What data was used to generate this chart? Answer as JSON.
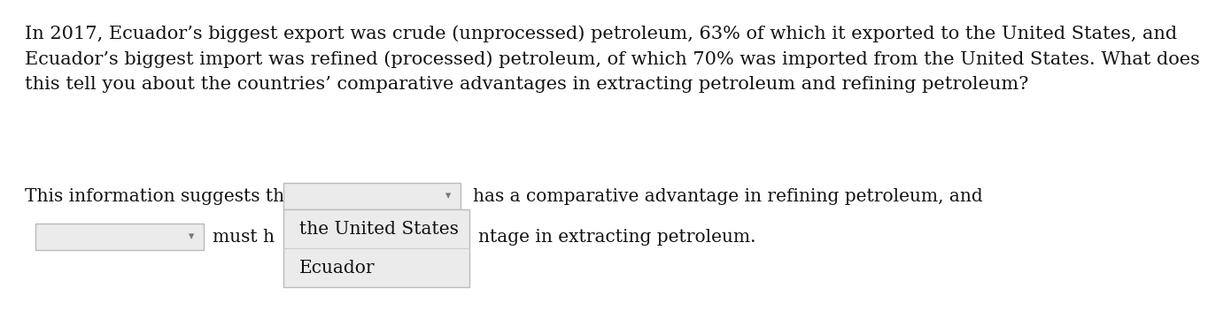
{
  "background_color": "#ffffff",
  "paragraph_text": "In 2017, Ecuador’s biggest export was crude (unprocessed) petroleum, 63% of which it exported to the United States, and\nEcuador’s biggest import was refined (processed) petroleum, of which 70% was imported from the United States. What does\nthis tell you about the countries’ comparative advantages in extracting petroleum and refining petroleum?",
  "line1_prefix": "This information suggests that",
  "line1_suffix": "has a comparative advantage in refining petroleum, and",
  "line2_prefix": "must h",
  "line2_suffix": "ntage in extracting petroleum.",
  "popup_item1": "the United States",
  "popup_item2": "Ecuador",
  "font_size_para": 15.0,
  "font_size_ui": 14.5,
  "text_color": "#111111",
  "dropdown_bg": "#ebebeb",
  "dropdown_border": "#bbbbbb",
  "popup_bg": "#ebebeb",
  "popup_border": "#bbbbbb",
  "separator_color": "#cccccc",
  "arrow_color": "#777777"
}
